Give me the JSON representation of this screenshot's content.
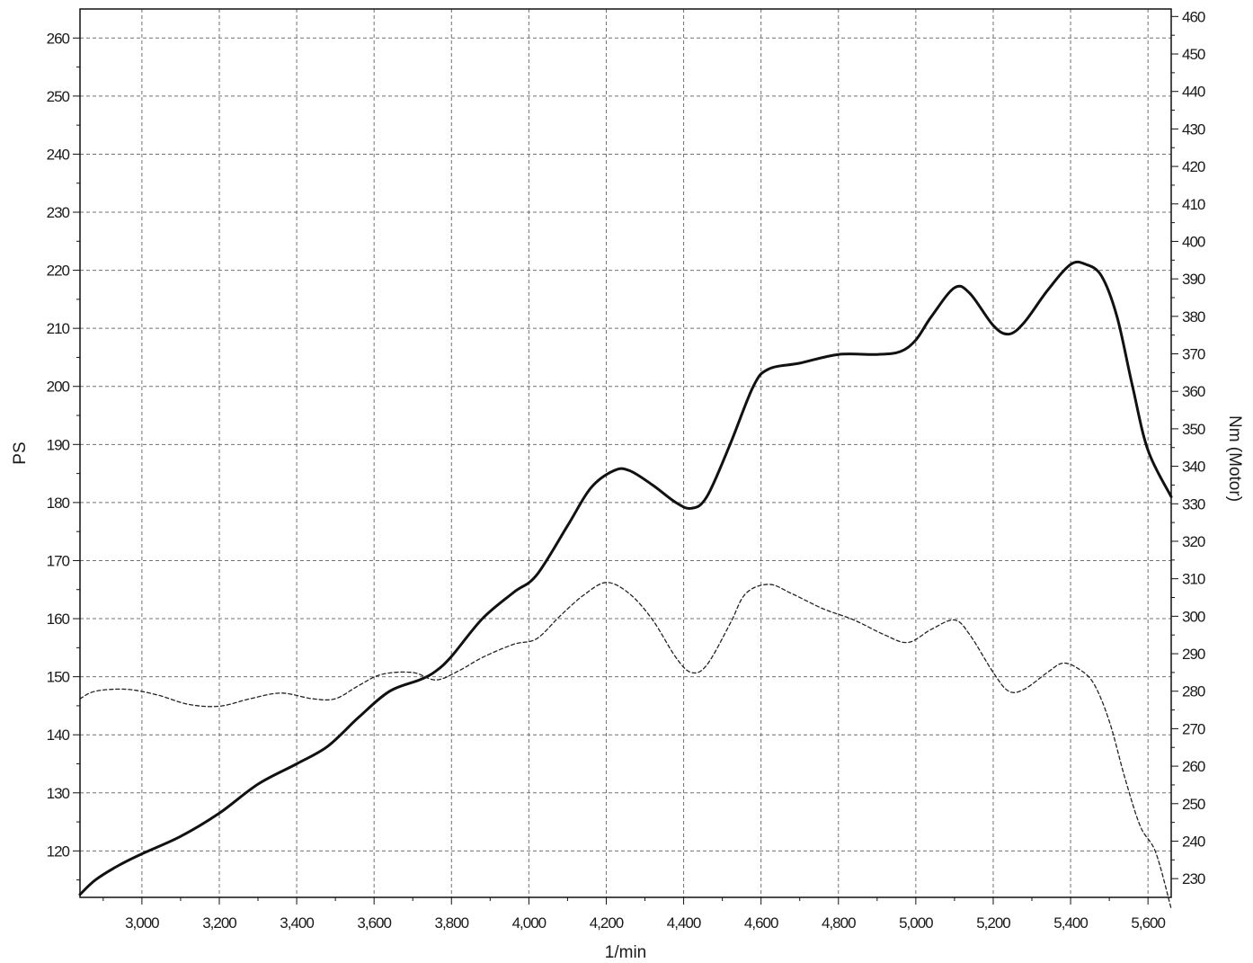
{
  "chart_data": {
    "type": "line",
    "xlabel": "1/min",
    "ylabel_left": "PS",
    "ylabel_right": "Nm (Motor)",
    "xlim": [
      2840,
      5660
    ],
    "ylim_left": [
      112,
      265
    ],
    "ylim_right": [
      225,
      462
    ],
    "grid": true,
    "x_ticks": [
      3000,
      3200,
      3400,
      3600,
      3800,
      4000,
      4200,
      4400,
      4600,
      4800,
      5000,
      5200,
      5400,
      5600
    ],
    "x_tick_labels": [
      "3,000",
      "3,200",
      "3,400",
      "3,600",
      "3,800",
      "4,000",
      "4,200",
      "4,400",
      "4,600",
      "4,800",
      "5,000",
      "5,200",
      "5,400",
      "5,600"
    ],
    "y_left_ticks": [
      120,
      130,
      140,
      150,
      160,
      170,
      180,
      190,
      200,
      210,
      220,
      230,
      240,
      250,
      260
    ],
    "y_left_tick_labels": [
      "120",
      "130",
      "140",
      "150",
      "160",
      "170",
      "180",
      "190",
      "200",
      "210",
      "220",
      "230",
      "240",
      "250",
      "260"
    ],
    "y_right_ticks": [
      230,
      240,
      250,
      260,
      270,
      280,
      290,
      300,
      310,
      320,
      330,
      340,
      350,
      360,
      370,
      380,
      390,
      400,
      410,
      420,
      430,
      440,
      450,
      460
    ],
    "y_right_tick_labels": [
      "230",
      "240",
      "250",
      "260",
      "270",
      "280",
      "290",
      "300",
      "310",
      "320",
      "330",
      "340",
      "350",
      "360",
      "370",
      "380",
      "390",
      "400",
      "410",
      "420",
      "430",
      "440",
      "450",
      "460"
    ],
    "series": [
      {
        "axis": "left",
        "style": "solid",
        "color": "#111111",
        "x": [
          2840,
          2880,
          2940,
          3000,
          3100,
          3200,
          3300,
          3400,
          3480,
          3560,
          3640,
          3720,
          3760,
          3800,
          3880,
          3960,
          4020,
          4100,
          4160,
          4220,
          4260,
          4320,
          4380,
          4420,
          4460,
          4520,
          4580,
          4620,
          4700,
          4800,
          4900,
          4960,
          5000,
          5040,
          5100,
          5140,
          5200,
          5240,
          5280,
          5340,
          5400,
          5440,
          5480,
          5520,
          5560,
          5600,
          5660
        ],
        "y": [
          112.5,
          115,
          117.5,
          119.5,
          122.5,
          126.5,
          131.5,
          135,
          138,
          143,
          147.5,
          149.5,
          151,
          153.5,
          160,
          164.5,
          167.5,
          176,
          182.5,
          185.5,
          185.5,
          183,
          180,
          179,
          181,
          190,
          200,
          203,
          204,
          205.5,
          205.5,
          206,
          208,
          212,
          217,
          216,
          210.5,
          209,
          211,
          216.5,
          221,
          221,
          219,
          212,
          200,
          189,
          181
        ]
      },
      {
        "axis": "right",
        "style": "dashed",
        "color": "#222222",
        "x": [
          2840,
          2880,
          2960,
          3040,
          3120,
          3200,
          3280,
          3360,
          3440,
          3500,
          3560,
          3620,
          3700,
          3760,
          3820,
          3880,
          3960,
          4020,
          4080,
          4140,
          4200,
          4260,
          4320,
          4380,
          4420,
          4460,
          4520,
          4560,
          4620,
          4680,
          4760,
          4840,
          4920,
          4980,
          5040,
          5100,
          5140,
          5200,
          5240,
          5280,
          5340,
          5380,
          5420,
          5460,
          5500,
          5540,
          5580,
          5620,
          5660
        ],
        "y": [
          278,
          280,
          280.5,
          279,
          276.5,
          276,
          278,
          279.5,
          278,
          278,
          281.5,
          284.5,
          285,
          283,
          285.5,
          289,
          292.5,
          294,
          300,
          305.5,
          309,
          306,
          299,
          289,
          285,
          287,
          298,
          306,
          308.5,
          306,
          302,
          299,
          295,
          293,
          296.5,
          299,
          295,
          285,
          280,
          280.5,
          285,
          287.5,
          286,
          282,
          272,
          257,
          244,
          237,
          222
        ]
      }
    ]
  }
}
